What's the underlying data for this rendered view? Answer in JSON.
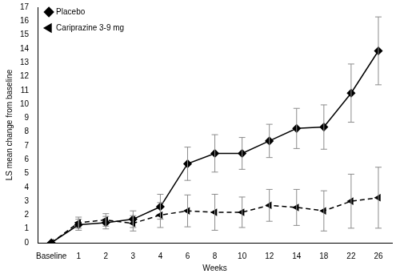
{
  "chart_data": {
    "type": "line",
    "x_label": "Weeks",
    "y_label": "LS mean change from baseline",
    "categories": [
      "Baseline",
      "1",
      "2",
      "3",
      "4",
      "6",
      "8",
      "10",
      "12",
      "14",
      "18",
      "22",
      "26"
    ],
    "series": [
      {
        "name": "Placebo",
        "color": "#000000",
        "marker": "diamond",
        "line_style": "solid",
        "values": [
          0,
          1.3,
          1.45,
          1.7,
          2.6,
          5.7,
          6.45,
          6.45,
          7.35,
          8.25,
          8.35,
          10.8,
          13.85
        ],
        "errors": [
          null,
          0.4,
          0.45,
          0.6,
          0.9,
          1.2,
          1.35,
          1.15,
          1.2,
          1.45,
          1.6,
          2.1,
          2.45
        ]
      },
      {
        "name": "Cariprazine 3-9 mg",
        "color": "#000000",
        "marker": "triangle-left",
        "line_style": "dashed",
        "values": [
          0,
          1.45,
          1.65,
          1.4,
          2.0,
          2.3,
          2.2,
          2.2,
          2.7,
          2.55,
          2.3,
          3.0,
          3.25
        ],
        "errors": [
          null,
          0.4,
          0.45,
          0.55,
          0.9,
          1.15,
          1.3,
          1.1,
          1.15,
          1.3,
          1.45,
          1.95,
          2.2
        ]
      }
    ],
    "ylim": [
      0,
      17
    ],
    "yticks": [
      0,
      1,
      2,
      3,
      4,
      5,
      6,
      7,
      8,
      9,
      10,
      11,
      12,
      13,
      14,
      15,
      16,
      17
    ],
    "grid": false,
    "legend": "top-left"
  }
}
